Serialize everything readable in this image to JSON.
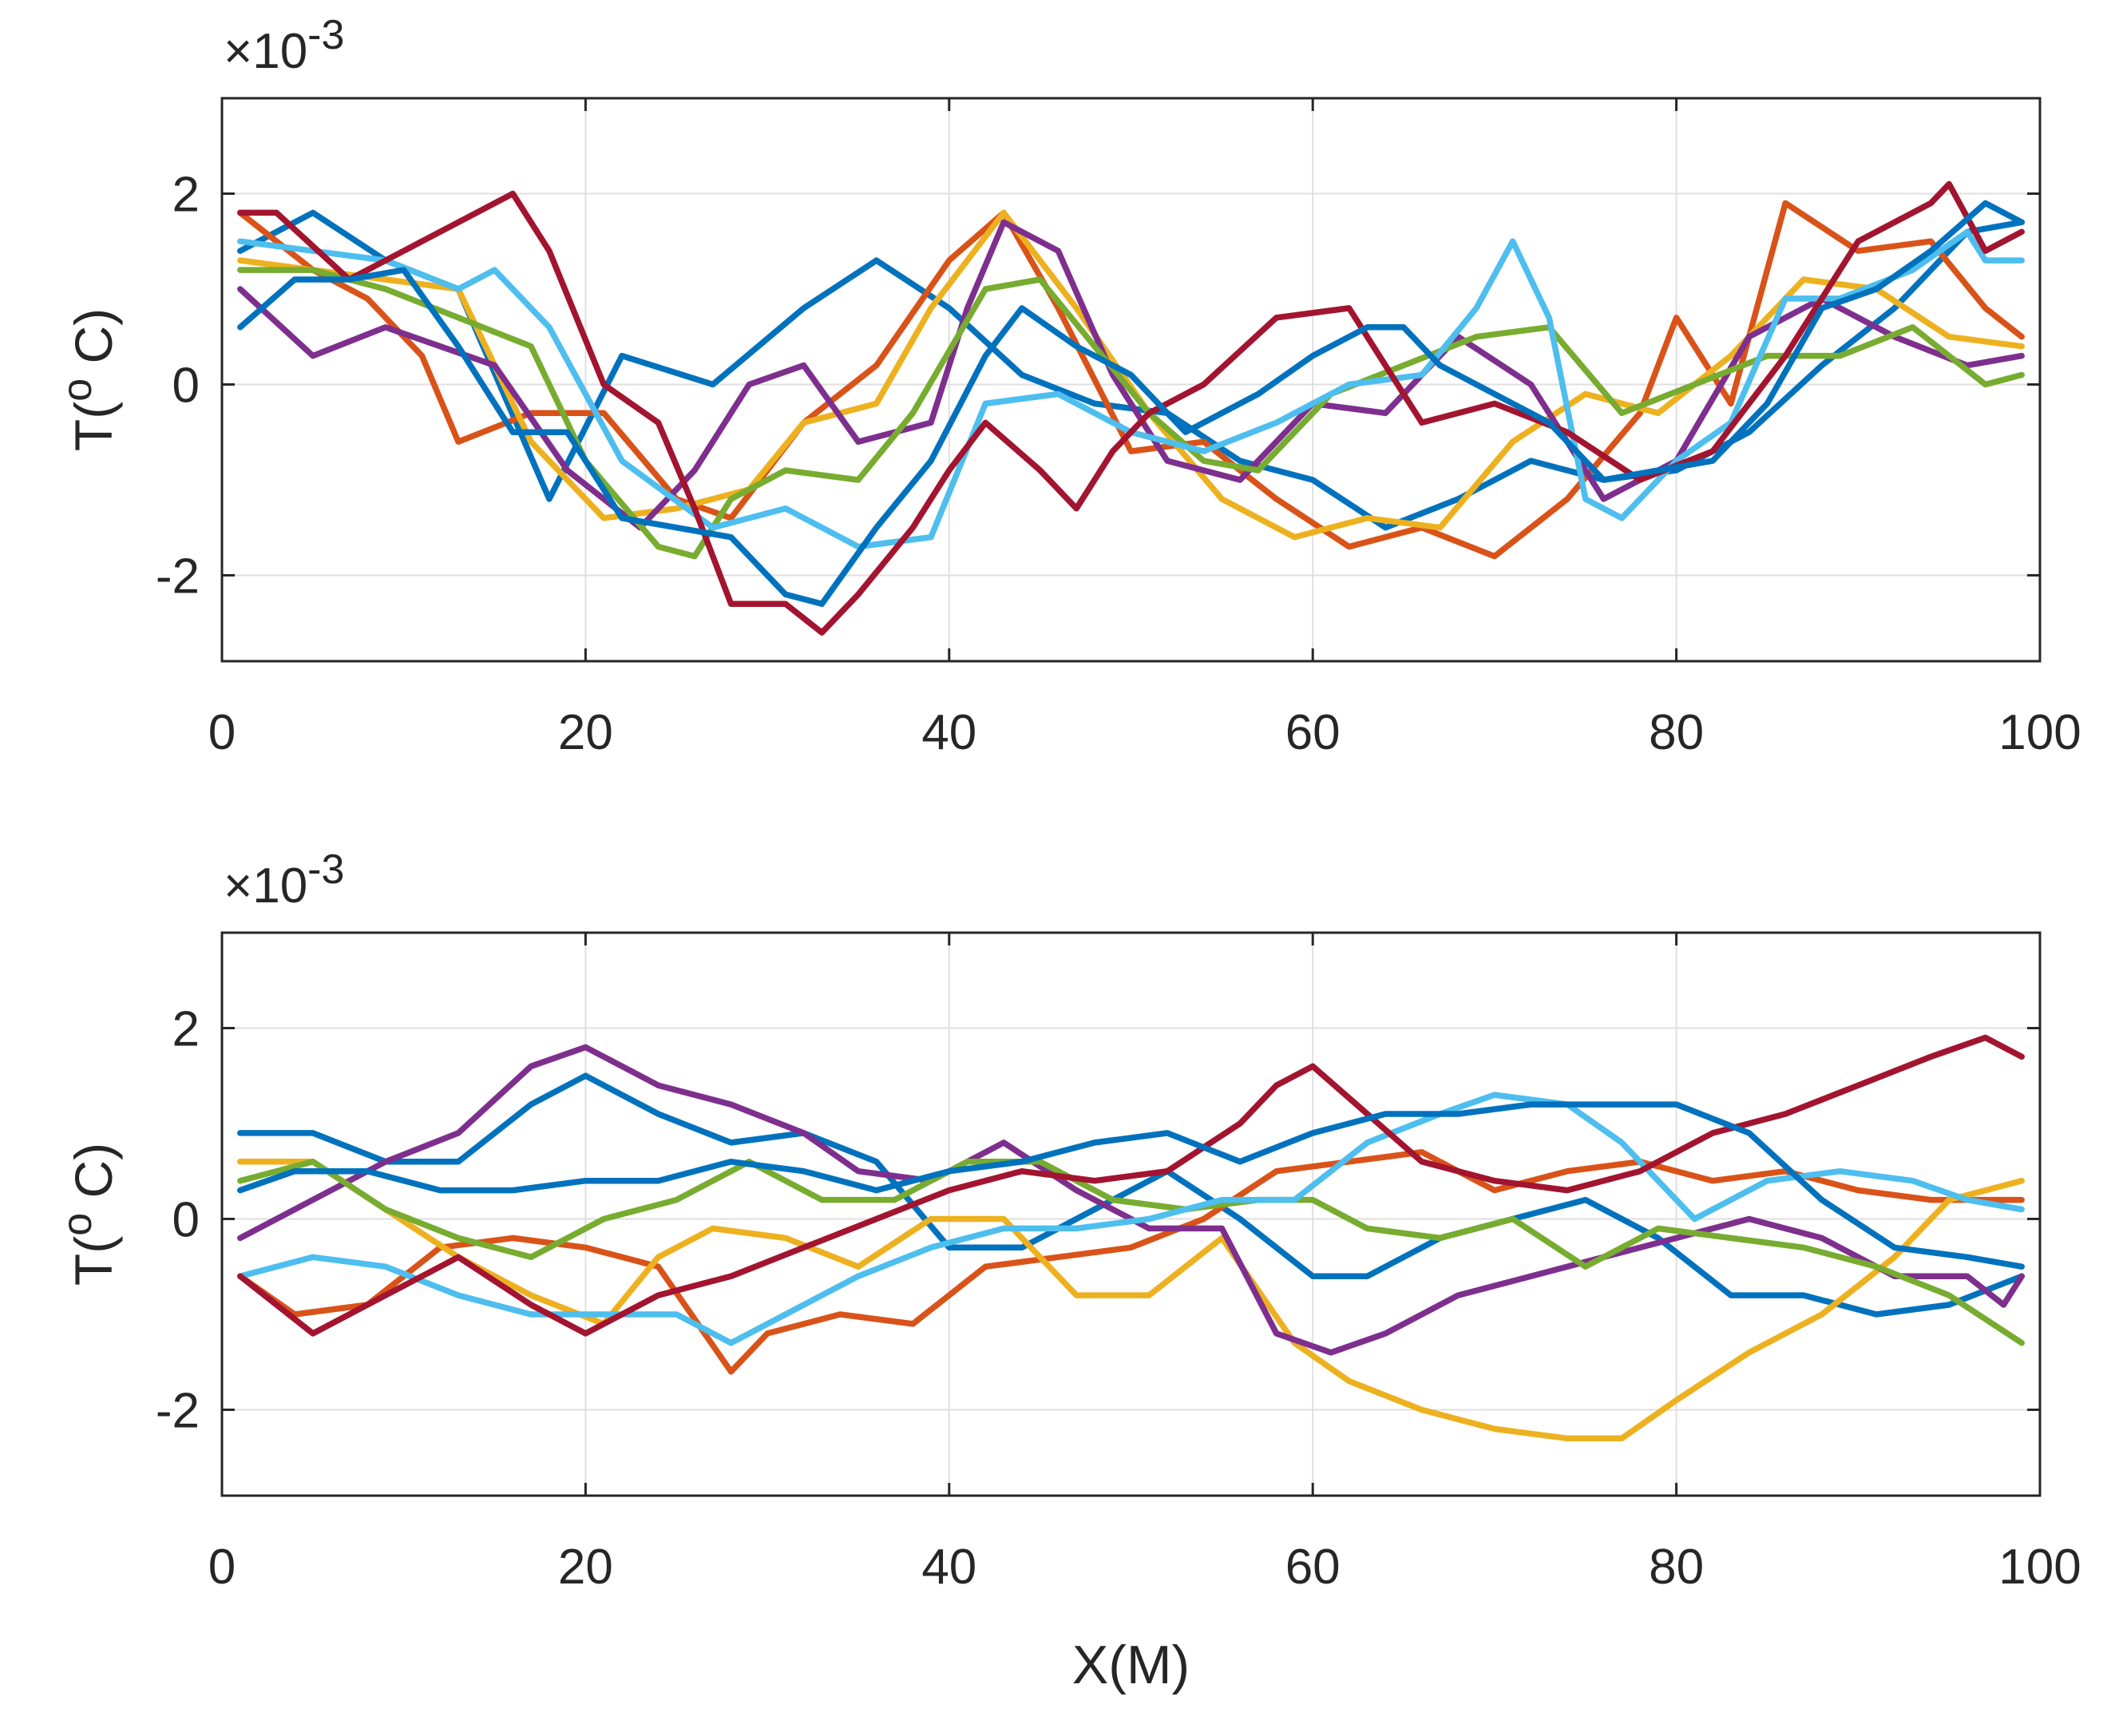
{
  "chart_data": [
    {
      "type": "line",
      "panel": "top",
      "title": "",
      "xlabel": "",
      "ylabel": "T(° C)",
      "ylabel_parts": {
        "main": "T(",
        "sup": "o",
        "tail": " C)"
      },
      "y_exponent_label": {
        "prefix": "×10",
        "sup": "-3"
      },
      "xlim": [
        0,
        100
      ],
      "ylim": [
        -2.9,
        3
      ],
      "xticks": [
        0,
        20,
        40,
        60,
        80,
        100
      ],
      "xtick_labels": [
        "0",
        "20",
        "40",
        "60",
        "80",
        "100"
      ],
      "yticks": [
        -2,
        0,
        2
      ],
      "ytick_labels": [
        "-2",
        "0",
        "2"
      ],
      "grid": true,
      "series": [
        {
          "name": "series-1",
          "color": "#0072BD",
          "x": [
            1,
            5,
            9,
            13,
            18,
            22,
            27,
            32,
            36,
            40,
            44,
            48,
            52,
            56,
            60,
            64,
            68,
            72,
            76,
            80,
            84,
            88,
            92,
            96,
            99
          ],
          "y": [
            1.4,
            1.8,
            1.3,
            1.0,
            -1.2,
            0.3,
            0.0,
            0.8,
            1.3,
            0.8,
            0.1,
            -0.2,
            -0.3,
            -0.8,
            -1.0,
            -1.5,
            -1.2,
            -0.8,
            -1.0,
            -0.9,
            -0.5,
            0.2,
            0.8,
            1.6,
            1.7
          ]
        },
        {
          "name": "series-2",
          "color": "#D95319",
          "x": [
            1,
            5,
            8,
            11,
            13,
            17,
            21,
            25,
            28,
            32,
            36,
            40,
            43,
            46,
            50,
            54,
            58,
            62,
            66,
            70,
            74,
            78,
            80,
            83,
            86,
            90,
            94,
            97,
            99
          ],
          "y": [
            1.8,
            1.2,
            0.9,
            0.3,
            -0.6,
            -0.3,
            -0.3,
            -1.2,
            -1.4,
            -0.4,
            0.2,
            1.3,
            1.8,
            0.8,
            -0.7,
            -0.6,
            -1.2,
            -1.7,
            -1.5,
            -1.8,
            -1.2,
            -0.3,
            0.7,
            -0.2,
            1.9,
            1.4,
            1.5,
            0.8,
            0.5
          ]
        },
        {
          "name": "series-3",
          "color": "#EDB120",
          "x": [
            1,
            5,
            9,
            13,
            17,
            21,
            25,
            29,
            32,
            36,
            39,
            43,
            47,
            51,
            55,
            59,
            63,
            67,
            71,
            75,
            79,
            83,
            87,
            91,
            95,
            99
          ],
          "y": [
            1.3,
            1.2,
            1.1,
            1.0,
            -0.6,
            -1.4,
            -1.3,
            -1.1,
            -0.4,
            -0.2,
            0.8,
            1.8,
            0.8,
            -0.3,
            -1.2,
            -1.6,
            -1.4,
            -1.5,
            -0.6,
            -0.1,
            -0.3,
            0.3,
            1.1,
            1.0,
            0.5,
            0.4
          ]
        },
        {
          "name": "series-4",
          "color": "#7E2F8E",
          "x": [
            1,
            5,
            9,
            12,
            15,
            19,
            23,
            26,
            29,
            32,
            35,
            39,
            41,
            43,
            46,
            49,
            52,
            56,
            60,
            64,
            68,
            72,
            76,
            80,
            84,
            88,
            92,
            96,
            99
          ],
          "y": [
            1.0,
            0.3,
            0.6,
            0.4,
            0.2,
            -0.9,
            -1.5,
            -0.9,
            0.0,
            0.2,
            -0.6,
            -0.4,
            0.8,
            1.7,
            1.4,
            0.1,
            -0.8,
            -1.0,
            -0.2,
            -0.3,
            0.5,
            0.0,
            -1.2,
            -0.8,
            0.5,
            0.9,
            0.5,
            0.2,
            0.3
          ]
        },
        {
          "name": "series-5",
          "color": "#77AC30",
          "x": [
            1,
            5,
            9,
            13,
            17,
            20,
            24,
            26,
            28,
            31,
            35,
            38,
            42,
            45,
            48,
            51,
            54,
            57,
            61,
            65,
            69,
            73,
            77,
            81,
            85,
            89,
            93,
            97,
            99
          ],
          "y": [
            1.2,
            1.2,
            1.0,
            0.7,
            0.4,
            -0.8,
            -1.7,
            -1.8,
            -1.2,
            -0.9,
            -1.0,
            -0.3,
            1.0,
            1.1,
            0.4,
            -0.3,
            -0.8,
            -0.9,
            -0.1,
            0.2,
            0.5,
            0.6,
            -0.3,
            0.0,
            0.3,
            0.3,
            0.6,
            0.0,
            0.1
          ]
        },
        {
          "name": "series-6",
          "color": "#4DBEEE",
          "x": [
            1,
            5,
            9,
            13,
            15,
            18,
            22,
            27,
            31,
            35,
            39,
            42,
            46,
            50,
            54,
            58,
            62,
            66,
            69,
            71,
            73,
            75,
            77,
            80,
            83,
            86,
            89,
            93,
            96,
            97,
            99
          ],
          "y": [
            1.5,
            1.4,
            1.3,
            1.0,
            1.2,
            0.6,
            -0.8,
            -1.5,
            -1.3,
            -1.7,
            -1.6,
            -0.2,
            -0.1,
            -0.5,
            -0.7,
            -0.4,
            0.0,
            0.1,
            0.8,
            1.5,
            0.7,
            -1.2,
            -1.4,
            -0.8,
            -0.4,
            0.9,
            0.9,
            1.2,
            1.6,
            1.3,
            1.3
          ]
        },
        {
          "name": "series-7",
          "color": "#A2142F",
          "x": [
            1,
            3,
            7,
            11,
            14,
            16,
            18,
            21,
            24,
            26,
            28,
            31,
            33,
            35,
            38,
            40,
            42,
            45,
            47,
            49,
            51,
            54,
            58,
            62,
            66,
            70,
            74,
            78,
            82,
            86,
            90,
            94,
            95,
            97,
            99
          ],
          "y": [
            1.8,
            1.8,
            1.1,
            1.5,
            1.8,
            2.0,
            1.4,
            0.0,
            -0.4,
            -1.3,
            -2.3,
            -2.3,
            -2.6,
            -2.2,
            -1.5,
            -0.9,
            -0.4,
            -0.9,
            -1.3,
            -0.7,
            -0.3,
            0.0,
            0.7,
            0.8,
            -0.4,
            -0.2,
            -0.5,
            -1.0,
            -0.7,
            0.3,
            1.5,
            1.9,
            2.1,
            1.4,
            1.6
          ]
        },
        {
          "name": "series-8",
          "color": "#0072BD",
          "x": [
            1,
            4,
            7,
            10,
            13,
            16,
            19,
            22,
            25,
            28,
            31,
            33,
            36,
            39,
            42,
            44,
            47,
            50,
            53,
            57,
            60,
            63,
            65,
            67,
            70,
            73,
            76,
            79,
            82,
            85,
            88,
            91,
            94,
            97,
            99
          ],
          "y": [
            0.6,
            1.1,
            1.1,
            1.2,
            0.4,
            -0.5,
            -0.5,
            -1.4,
            -1.5,
            -1.6,
            -2.2,
            -2.3,
            -1.5,
            -0.8,
            0.3,
            0.8,
            0.4,
            0.1,
            -0.5,
            -0.1,
            0.3,
            0.6,
            0.6,
            0.2,
            -0.1,
            -0.4,
            -1.0,
            -0.9,
            -0.8,
            -0.2,
            0.8,
            1.0,
            1.4,
            1.9,
            1.7
          ]
        }
      ]
    },
    {
      "type": "line",
      "panel": "bottom",
      "title": "",
      "xlabel": "X(M)",
      "ylabel": "T(° C)",
      "ylabel_parts": {
        "main": "T(",
        "sup": "o",
        "tail": " C)"
      },
      "y_exponent_label": {
        "prefix": "×10",
        "sup": "-3"
      },
      "xlim": [
        0,
        100
      ],
      "ylim": [
        -2.9,
        3
      ],
      "xticks": [
        0,
        20,
        40,
        60,
        80,
        100
      ],
      "xtick_labels": [
        "0",
        "20",
        "40",
        "60",
        "80",
        "100"
      ],
      "yticks": [
        -2,
        0,
        2
      ],
      "ytick_labels": [
        "-2",
        "0",
        "2"
      ],
      "grid": true,
      "series": [
        {
          "name": "series-1",
          "color": "#0072BD",
          "x": [
            1,
            5,
            9,
            13,
            17,
            20,
            24,
            28,
            32,
            36,
            40,
            44,
            48,
            52,
            56,
            60,
            63,
            67,
            71,
            75,
            79,
            83,
            87,
            91,
            95,
            99
          ],
          "y": [
            0.9,
            0.9,
            0.6,
            0.6,
            1.2,
            1.5,
            1.1,
            0.8,
            0.9,
            0.6,
            -0.3,
            -0.3,
            0.1,
            0.5,
            0.0,
            -0.6,
            -0.6,
            -0.2,
            0.0,
            0.2,
            -0.2,
            -0.8,
            -0.8,
            -1.0,
            -0.9,
            -0.6
          ]
        },
        {
          "name": "series-2",
          "color": "#D95319",
          "x": [
            1,
            4,
            8,
            12,
            16,
            20,
            24,
            28,
            30,
            34,
            38,
            42,
            46,
            50,
            54,
            58,
            62,
            66,
            70,
            74,
            78,
            82,
            86,
            90,
            94,
            99
          ],
          "y": [
            -0.6,
            -1.0,
            -0.9,
            -0.3,
            -0.2,
            -0.3,
            -0.5,
            -1.6,
            -1.2,
            -1.0,
            -1.1,
            -0.5,
            -0.4,
            -0.3,
            0.0,
            0.5,
            0.6,
            0.7,
            0.3,
            0.5,
            0.6,
            0.4,
            0.5,
            0.3,
            0.2,
            0.2
          ]
        },
        {
          "name": "series-3",
          "color": "#EDB120",
          "x": [
            1,
            5,
            9,
            13,
            17,
            21,
            24,
            27,
            31,
            35,
            39,
            43,
            47,
            51,
            55,
            59,
            62,
            66,
            70,
            74,
            77,
            80,
            84,
            88,
            92,
            95,
            99
          ],
          "y": [
            0.6,
            0.6,
            0.1,
            -0.4,
            -0.8,
            -1.1,
            -0.4,
            -0.1,
            -0.2,
            -0.5,
            0.0,
            0.0,
            -0.8,
            -0.8,
            -0.2,
            -1.3,
            -1.7,
            -2.0,
            -2.2,
            -2.3,
            -2.3,
            -1.9,
            -1.4,
            -1.0,
            -0.4,
            0.2,
            0.4
          ]
        },
        {
          "name": "series-4",
          "color": "#7E2F8E",
          "x": [
            1,
            5,
            9,
            13,
            17,
            20,
            24,
            28,
            32,
            35,
            39,
            43,
            47,
            51,
            55,
            58,
            61,
            64,
            68,
            72,
            76,
            80,
            84,
            88,
            92,
            96,
            98,
            99
          ],
          "y": [
            -0.2,
            0.2,
            0.6,
            0.9,
            1.6,
            1.8,
            1.4,
            1.2,
            0.9,
            0.5,
            0.4,
            0.8,
            0.3,
            -0.1,
            -0.1,
            -1.2,
            -1.4,
            -1.2,
            -0.8,
            -0.6,
            -0.4,
            -0.2,
            0.0,
            -0.2,
            -0.6,
            -0.6,
            -0.9,
            -0.6
          ]
        },
        {
          "name": "series-5",
          "color": "#77AC30",
          "x": [
            1,
            5,
            9,
            13,
            17,
            21,
            25,
            29,
            33,
            37,
            41,
            45,
            49,
            53,
            57,
            60,
            63,
            67,
            71,
            75,
            79,
            83,
            87,
            91,
            95,
            99
          ],
          "y": [
            0.4,
            0.6,
            0.1,
            -0.2,
            -0.4,
            0.0,
            0.2,
            0.6,
            0.2,
            0.2,
            0.6,
            0.6,
            0.2,
            0.1,
            0.2,
            0.2,
            -0.1,
            -0.2,
            0.0,
            -0.5,
            -0.1,
            -0.2,
            -0.3,
            -0.5,
            -0.8,
            -1.3
          ]
        },
        {
          "name": "series-6",
          "color": "#4DBEEE",
          "x": [
            1,
            5,
            9,
            13,
            17,
            21,
            25,
            28,
            31,
            35,
            39,
            43,
            47,
            51,
            55,
            59,
            63,
            67,
            70,
            74,
            77,
            81,
            85,
            89,
            93,
            96,
            99
          ],
          "y": [
            -0.6,
            -0.4,
            -0.5,
            -0.8,
            -1.0,
            -1.0,
            -1.0,
            -1.3,
            -1.0,
            -0.6,
            -0.3,
            -0.1,
            -0.1,
            0.0,
            0.2,
            0.2,
            0.8,
            1.1,
            1.3,
            1.2,
            0.8,
            0.0,
            0.4,
            0.5,
            0.4,
            0.2,
            0.1
          ]
        },
        {
          "name": "series-7",
          "color": "#A2142F",
          "x": [
            1,
            5,
            9,
            13,
            17,
            20,
            24,
            28,
            32,
            36,
            40,
            44,
            48,
            52,
            56,
            58,
            60,
            63,
            66,
            70,
            74,
            78,
            82,
            86,
            90,
            94,
            97,
            98,
            99
          ],
          "y": [
            -0.6,
            -1.2,
            -0.8,
            -0.4,
            -0.9,
            -1.2,
            -0.8,
            -0.6,
            -0.3,
            0.0,
            0.3,
            0.5,
            0.4,
            0.5,
            1.0,
            1.4,
            1.6,
            1.1,
            0.6,
            0.4,
            0.3,
            0.5,
            0.9,
            1.1,
            1.4,
            1.7,
            1.9,
            1.8,
            1.7
          ]
        },
        {
          "name": "series-8",
          "color": "#0072BD",
          "x": [
            1,
            4,
            8,
            12,
            16,
            20,
            24,
            28,
            32,
            36,
            40,
            44,
            48,
            52,
            56,
            60,
            64,
            68,
            72,
            76,
            80,
            84,
            88,
            92,
            96,
            99
          ],
          "y": [
            0.3,
            0.5,
            0.5,
            0.3,
            0.3,
            0.4,
            0.4,
            0.6,
            0.5,
            0.3,
            0.5,
            0.6,
            0.8,
            0.9,
            0.6,
            0.9,
            1.1,
            1.1,
            1.2,
            1.2,
            1.2,
            0.9,
            0.2,
            -0.3,
            -0.4,
            -0.5
          ]
        }
      ]
    }
  ]
}
